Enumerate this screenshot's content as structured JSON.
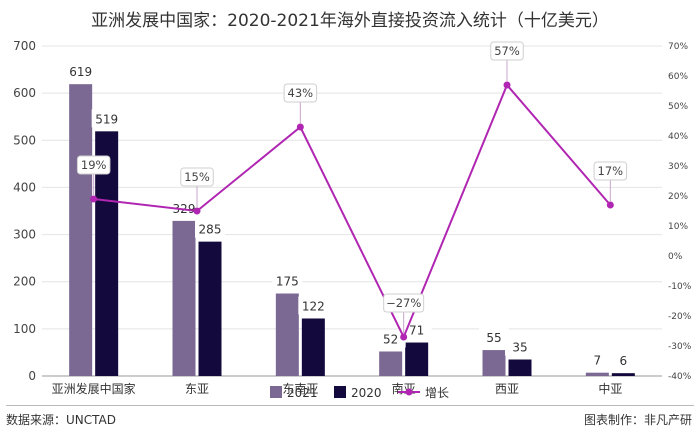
{
  "header": {
    "title": "亚洲发展中国家：2020-2021年海外直接投资流入统计（十亿美元）"
  },
  "footer": {
    "source": "数据来源：UNCTAD",
    "credit": "图表制作：非凡产研"
  },
  "chart_data": {
    "type": "bar",
    "title": "亚洲发展中国家：2020-2021年海外直接投资流入统计（十亿美元）",
    "categories": [
      "亚洲发展中国家",
      "东亚",
      "东南亚",
      "南亚",
      "西亚",
      "中亚"
    ],
    "series": [
      {
        "name": "2021",
        "kind": "bar",
        "color": "#7b6893",
        "values": [
          619,
          329,
          175,
          52,
          55,
          7
        ]
      },
      {
        "name": "2020",
        "kind": "bar",
        "color": "#14093c",
        "values": [
          519,
          285,
          122,
          71,
          35,
          6
        ]
      },
      {
        "name": "增长",
        "kind": "line",
        "axis": "right",
        "color": "#b026b2",
        "values": [
          19,
          15,
          43,
          -27,
          57,
          17
        ],
        "labels": [
          "19%",
          "15%",
          "43%",
          "−27%",
          "57%",
          "17%"
        ]
      }
    ],
    "value_labels": {
      "2021": [
        "619",
        "329",
        "175",
        "52",
        "55",
        "7"
      ],
      "2020": [
        "519",
        "285",
        "122",
        "71",
        "35",
        "6"
      ]
    },
    "y_left": {
      "ylim": [
        0,
        700
      ],
      "ticks": [
        "0",
        "100",
        "200",
        "300",
        "400",
        "500",
        "600",
        "700"
      ]
    },
    "y_right": {
      "ylim": [
        -40,
        70
      ],
      "ticks": [
        "-40%",
        "-30%",
        "-20%",
        "-10%",
        "0%",
        "10%",
        "20%",
        "30%",
        "40%",
        "50%",
        "60%",
        "70%"
      ]
    },
    "grid": true,
    "legend_position": "bottom-center",
    "legend": [
      "2021",
      "2020",
      "增长"
    ]
  }
}
